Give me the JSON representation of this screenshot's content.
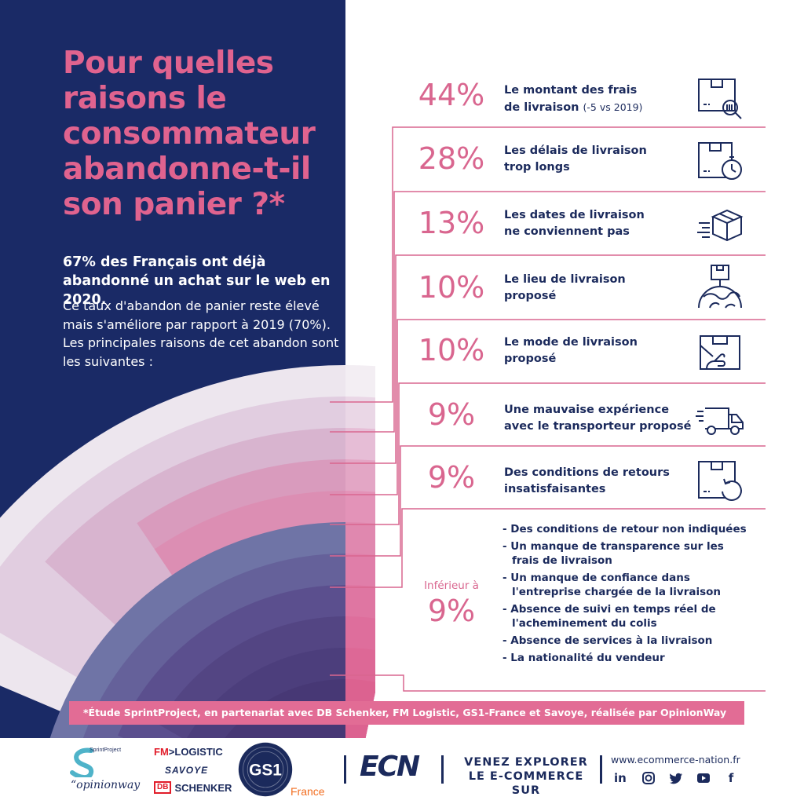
{
  "title": "Pour quelles raisons le consommateur abandonne-t-il son panier ?*",
  "intro": {
    "bold": "67% des Français ont déjà abandonné un achat sur le web en 2020.",
    "text": "Ce taux d'abandon de panier reste élevé mais s'améliore par rapport à 2019 (70%). Les principales raisons de cet abandon sont les suivantes :"
  },
  "chart_data": {
    "type": "bar",
    "categories": [
      "Le montant des frais de livraison",
      "Les délais de livraison trop longs",
      "Les dates de livraison ne conviennent pas",
      "Le lieu de livraison proposé",
      "Le mode de livraison proposé",
      "Une mauvaise expérience avec le transporteur proposé",
      "Des conditions de retours insatisfaisantes",
      "Inférieur à 9%"
    ],
    "values": [
      44,
      28,
      13,
      10,
      10,
      9,
      9,
      9
    ],
    "title": "Pour quelles raisons le consommateur abandonne-t-il son panier ?*"
  },
  "reasons": [
    {
      "pct": "44%",
      "line1": "Le montant des frais",
      "line2": "de livraison",
      "note": "(-5 vs 2019)",
      "icon": "box-search-icon"
    },
    {
      "pct": "28%",
      "line1": "Les délais de livraison",
      "line2": "trop longs",
      "note": "",
      "icon": "box-stopwatch-icon"
    },
    {
      "pct": "13%",
      "line1": "Les dates de livraison",
      "line2": "ne conviennent pas",
      "note": "",
      "icon": "fast-box-icon"
    },
    {
      "pct": "10%",
      "line1": "Le lieu de livraison",
      "line2": "proposé",
      "note": "",
      "icon": "box-globe-icon"
    },
    {
      "pct": "10%",
      "line1": "Le mode de livraison",
      "line2": "proposé",
      "note": "",
      "icon": "box-hand-icon"
    },
    {
      "pct": "9%",
      "line1": "Une mauvaise expérience",
      "line2": "avec le transporteur proposé",
      "note": "",
      "icon": "truck-icon"
    },
    {
      "pct": "9%",
      "line1": "Des conditions de retours",
      "line2": "insatisfaisantes",
      "note": "",
      "icon": "box-return-icon"
    }
  ],
  "other": {
    "label": "Inférieur à",
    "pct": "9%",
    "items": [
      "- Des conditions de retour non indiquées",
      "- Un manque de transparence sur les frais de livraison",
      "- Un manque de confiance dans l'entreprise chargée de la livraison",
      "- Absence de suivi en temps réel de l'acheminement du colis",
      "- Absence de services à la livraison",
      "- La nationalité du vendeur"
    ]
  },
  "footnote": "*Étude SprintProject, en partenariat avec DB Schenker, FM Logistic, GS1-France et Savoye, réalisée par OpinionWay",
  "logos": {
    "sprintproject": "SprintProject",
    "opinionway": "“opinionway",
    "fm": "FM",
    "logistic": ">LOGISTIC",
    "savoye": "SAVOYE",
    "db": "DB",
    "schenker": "SCHENKER",
    "gs1": "GS1",
    "gs1_france": "France",
    "ecn": "ECN"
  },
  "cta": {
    "line1": "VENEZ EXPLORER",
    "line2": "LE E-COMMERCE SUR"
  },
  "website": "www.ecommerce-nation.fr",
  "socials": [
    "linkedin-icon",
    "instagram-icon",
    "twitter-icon",
    "youtube-icon",
    "facebook-icon"
  ],
  "colors": {
    "navy": "#1a2a66",
    "pink": "#e0638f",
    "text_navy": "#1b2a5c"
  }
}
